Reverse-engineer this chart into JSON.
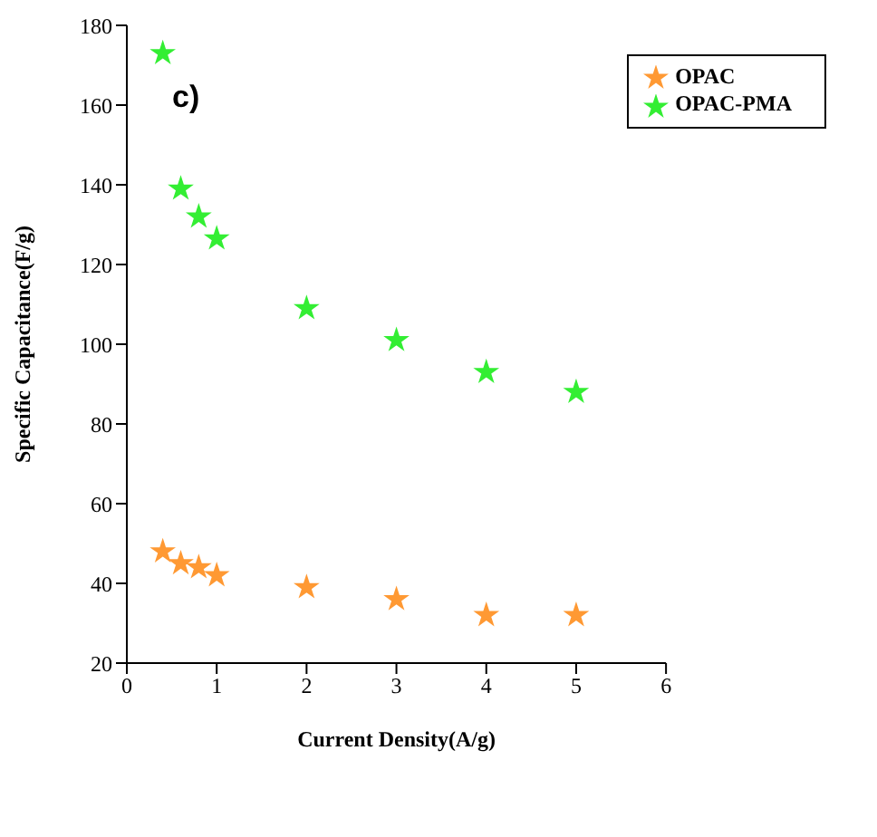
{
  "chart_data": {
    "type": "scatter",
    "xlabel": "Current Density(A/g)",
    "ylabel": "Specific Capacitance(F/g)",
    "annotations": [
      "c)"
    ],
    "xlim": [
      0,
      6
    ],
    "xticks": [
      0,
      1,
      2,
      3,
      4,
      5,
      6
    ],
    "ylim": [
      20,
      180
    ],
    "yticks": [
      20,
      40,
      60,
      80,
      100,
      120,
      140,
      160,
      180
    ],
    "marker": "star",
    "legend": "top right",
    "grid": false,
    "series": [
      {
        "name": "OPAC",
        "color": "#ff9933",
        "x": [
          0.4,
          0.6,
          0.8,
          1,
          2,
          3,
          4,
          5
        ],
        "values": [
          48,
          45,
          44,
          42,
          39,
          36,
          32,
          32
        ]
      },
      {
        "name": "OPAC-PMA",
        "color": "#33ee33",
        "x": [
          0.4,
          0.6,
          0.8,
          1,
          2,
          3,
          4,
          5
        ],
        "values": [
          173,
          139,
          132,
          126.5,
          109,
          101,
          93,
          88
        ]
      }
    ]
  }
}
